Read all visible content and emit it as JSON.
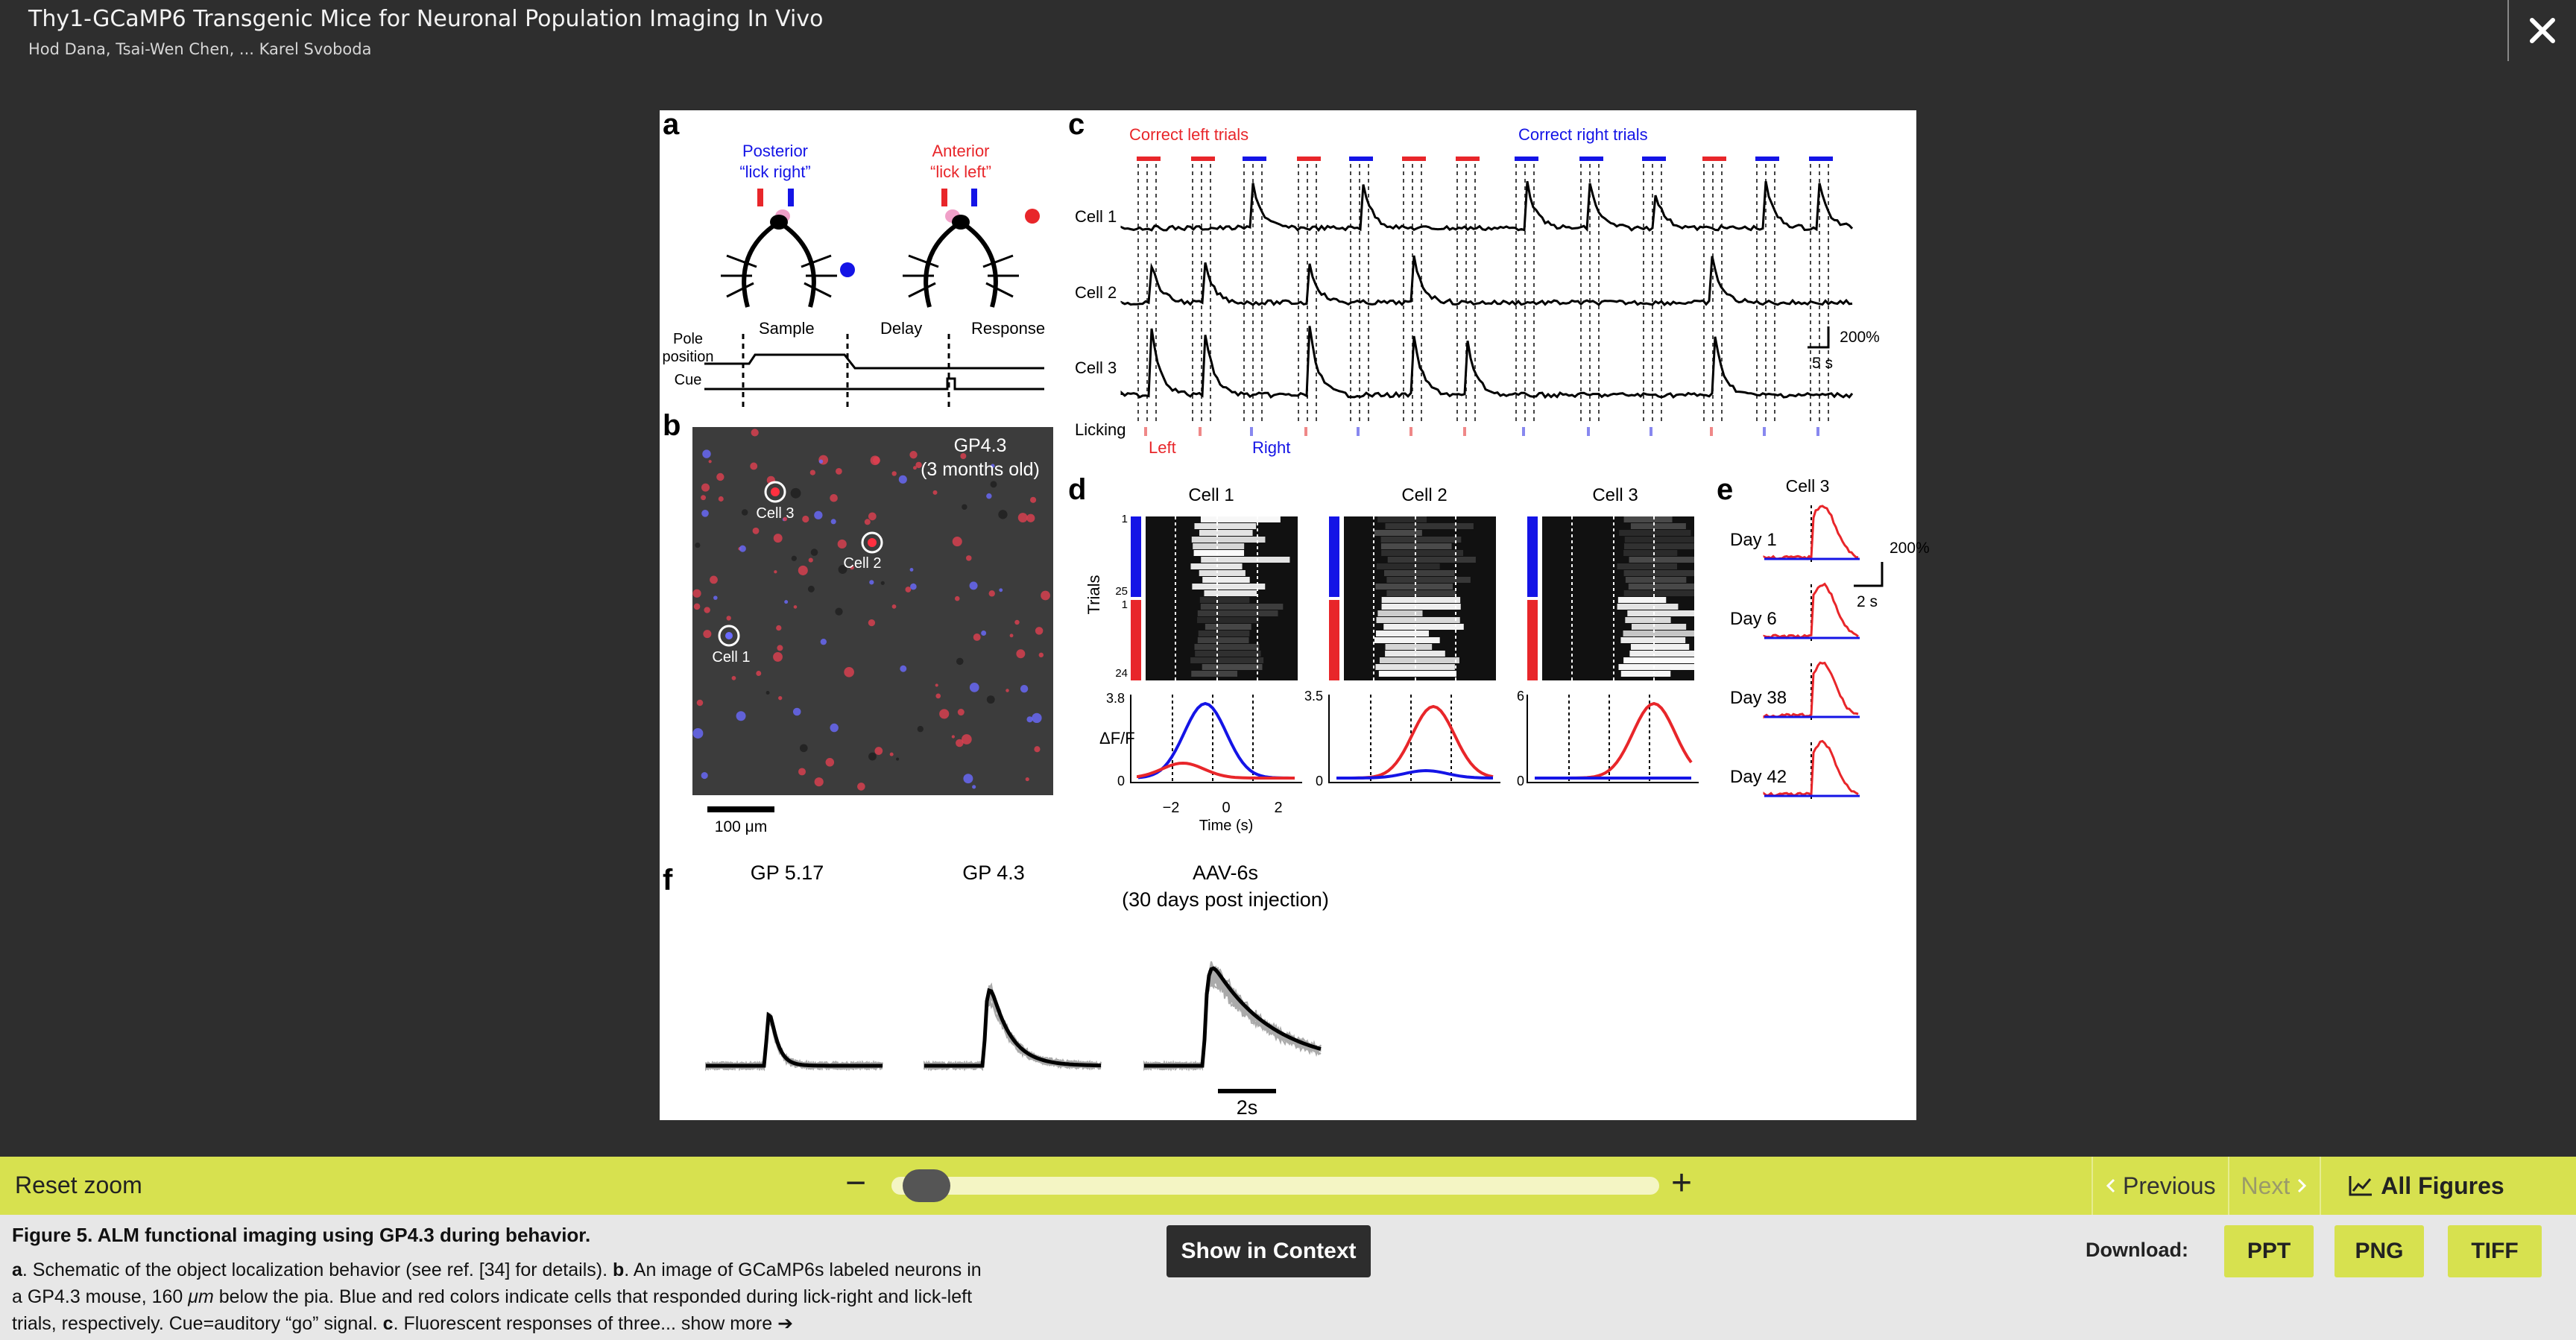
{
  "header": {
    "title": "Thy1-GCaMP6 Transgenic Mice for Neuronal Population Imaging In Vivo",
    "authors": "Hod Dana,  Tsai-Wen Chen,  ... Karel Svoboda"
  },
  "figure": {
    "panel_a": {
      "label": "a",
      "posterior": "Posterior",
      "lick_right": "“lick right”",
      "anterior": "Anterior",
      "lick_left": "“lick left”",
      "pole_position": "Pole position",
      "pole": "Pole",
      "position": "position",
      "cue": "Cue",
      "sample": "Sample",
      "delay": "Delay",
      "response": "Response"
    },
    "panel_b": {
      "label": "b",
      "line1": "GP4.3",
      "line2": "(3 months old)",
      "cell1": "Cell 1",
      "cell2": "Cell 2",
      "cell3": "Cell 3",
      "scale": "100 μm"
    },
    "panel_c": {
      "label": "c",
      "correct_left": "Correct left trials",
      "correct_right": "Correct right trials",
      "cell1": "Cell 1",
      "cell2": "Cell 2",
      "cell3": "Cell 3",
      "licking": "Licking",
      "left": "Left",
      "right": "Right",
      "scale_y": "200%",
      "scale_x": "5 s"
    },
    "panel_d": {
      "label": "d",
      "cell1": "Cell 1",
      "cell2": "Cell 2",
      "cell3": "Cell 3",
      "trials": "Trials",
      "tick_1": "1",
      "tick_25": "25",
      "tick_1b": "1",
      "tick_24": "24",
      "dff": "ΔF/F",
      "y_top1": "3.8",
      "y_top2": "3.5",
      "y_top3": "6",
      "y_zero": "0",
      "x_m2": "−2",
      "x_0": "0",
      "x_2": "2",
      "xlabel": "Time (s)"
    },
    "panel_e": {
      "label": "e",
      "title": "Cell 3",
      "day1": "Day 1",
      "day6": "Day 6",
      "day38": "Day 38",
      "day42": "Day 42",
      "scale_y": "200%",
      "scale_x": "2 s"
    },
    "panel_f": {
      "label": "f",
      "gp517": "GP 5.17",
      "gp43": "GP 4.3",
      "aav": "AAV-6s",
      "aav_sub": "(30 days post injection)",
      "scale": "2s"
    }
  },
  "zoom_bar": {
    "reset": "Reset zoom",
    "minus": "−",
    "plus": "+",
    "zoom_fraction": 0.02,
    "previous": "Previous",
    "next": "Next",
    "all_figures": "All Figures"
  },
  "caption": {
    "title": "Figure 5. ALM functional imaging using GP4.3 during behavior.",
    "a": "a",
    "text_a": ". Schematic of the object localization behavior (see ref. [34] for details). ",
    "b": "b",
    "text_b": ". An image of GCaMP6s labeled neurons in a GP4.3 mouse, 160 ",
    "um": "μm",
    "text_b2": " below the pia. Blue and red colors indicate cells that responded during lick-right and lick-left trials, respectively. Cue=auditory “go” signal. ",
    "c": "c",
    "text_c": ". Fluorescent responses of three...",
    "show_more": " show more ➔",
    "show_in_context": "Show in Context",
    "download_label": "Download:",
    "ppt": "PPT",
    "png": "PNG",
    "tiff": "TIFF"
  },
  "icons": {
    "close": "close-icon",
    "chevron_left": "chevron-left-icon",
    "chevron_right": "chevron-right-icon",
    "chart": "line-chart-icon"
  },
  "colors": {
    "accent": "#d7e14f",
    "red": "#e8262a",
    "blue": "#1414e6"
  }
}
